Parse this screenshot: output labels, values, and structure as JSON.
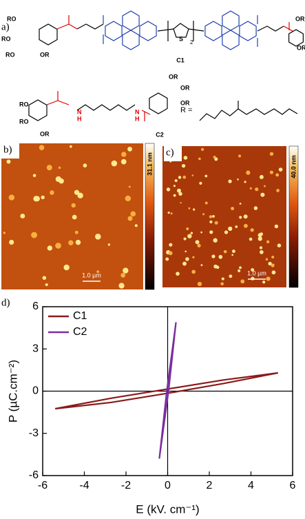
{
  "panel_labels": [
    "a)",
    "b)",
    "c)",
    "d)"
  ],
  "structure": {
    "c1_label": "C1",
    "c2_label": "C2",
    "r_def": "R =",
    "ro": [
      "RO",
      "RO",
      "RO",
      "OR",
      "OR",
      "OR",
      "RO",
      "RO",
      "OR",
      "OR",
      "OR",
      "OR"
    ],
    "nh": [
      "N",
      "H",
      "N",
      "H"
    ],
    "s": "S",
    "n2": "2"
  },
  "afm": [
    {
      "scale_max": "31.1 nm",
      "scale_bar": "1.0 µm"
    },
    {
      "scale_max": "40.0 nm",
      "scale_bar": "1.0 µm"
    }
  ],
  "chart_data": {
    "type": "line",
    "xlabel": "E (kV. cm⁻¹)",
    "ylabel": "P (µC.cm⁻²)",
    "series": [
      {
        "name": "C1",
        "color": "#8b1a1a",
        "x": [
          -5.4,
          -2.7,
          0,
          2.7,
          5.3,
          2.7,
          0,
          -2.7,
          -5.4
        ],
        "values": [
          -1.25,
          -0.5,
          0.15,
          0.8,
          1.3,
          0.55,
          -0.15,
          -0.8,
          -1.25
        ]
      },
      {
        "name": "C2",
        "color": "#7b2f9e",
        "x": [
          -0.4,
          0.05,
          0.4,
          -0.05,
          -0.4
        ],
        "values": [
          -4.8,
          0.1,
          4.9,
          -0.1,
          -4.8
        ]
      }
    ],
    "xlim": [
      -6,
      6
    ],
    "ylim": [
      -6,
      6
    ],
    "xticks": [
      -6,
      -4,
      -2,
      0,
      2,
      4,
      6
    ],
    "yticks": [
      -6,
      -3,
      0,
      3,
      6
    ],
    "legend": "top-left"
  }
}
